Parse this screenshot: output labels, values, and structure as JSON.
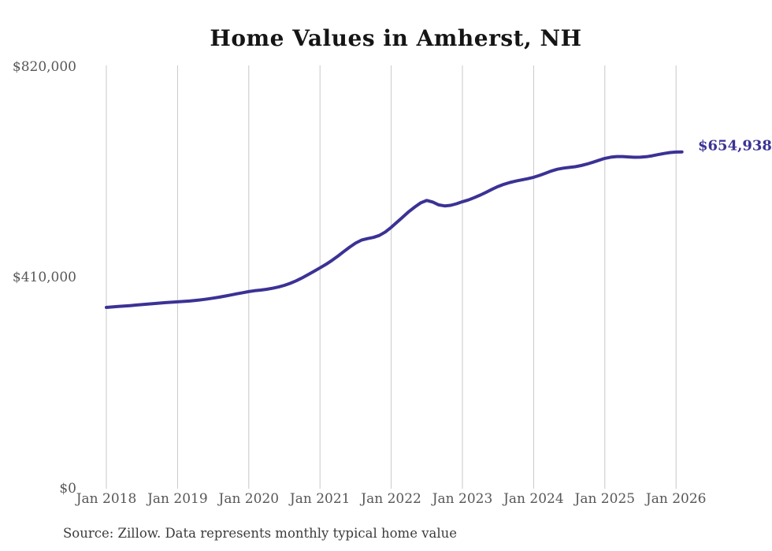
{
  "title": "Home Values in Amherst, NH",
  "source_note": "Source: Zillow. Data represents monthly typical home value",
  "end_label": "$654,938",
  "colors": {
    "background": "#ffffff",
    "line": "#3b3295",
    "grid": "#c8c8c8",
    "axis_text": "#575757",
    "title_text": "#151515",
    "end_label_text": "#3b3295",
    "source_text": "#3c3c3c"
  },
  "chart_data": {
    "type": "line",
    "title": "Home Values in Amherst, NH",
    "xlabel": "",
    "ylabel": "",
    "legend": "none",
    "grid": "vertical-only",
    "ylim": [
      0,
      820000
    ],
    "y_ticks": [
      {
        "label": "$820,000",
        "value": 820000
      },
      {
        "label": "$410,000",
        "value": 410000
      },
      {
        "label": "$0",
        "value": 0
      }
    ],
    "x_tick_labels": [
      "Jan 2018",
      "Jan 2019",
      "Jan 2020",
      "Jan 2021",
      "Jan 2022",
      "Jan 2023",
      "Jan 2024",
      "Jan 2025",
      "Jan 2026"
    ],
    "x_start_month": "2018-01",
    "x_end_month": "2026-02",
    "end_value": 654938,
    "series": [
      {
        "name": "Typical home value (monthly)",
        "monthly_values": [
          352500,
          353400,
          354300,
          355200,
          356100,
          357100,
          358100,
          359100,
          360100,
          361000,
          361900,
          362700,
          363400,
          364100,
          365000,
          366100,
          367400,
          368900,
          370600,
          372500,
          374600,
          376800,
          379000,
          381200,
          383400,
          385000,
          386300,
          387800,
          389700,
          392200,
          395400,
          399400,
          404300,
          410000,
          416300,
          422900,
          429400,
          436200,
          443800,
          452200,
          461000,
          469700,
          477600,
          483400,
          486400,
          488600,
          492400,
          499200,
          508300,
          518300,
          528800,
          539000,
          548000,
          556000,
          560500,
          557500,
          552000,
          550000,
          551000,
          554000,
          558000,
          561500,
          566000,
          571000,
          576500,
          582300,
          587600,
          592000,
          595500,
          598200,
          600500,
          602800,
          605500,
          609300,
          613600,
          617800,
          621200,
          623400,
          624700,
          626100,
          628400,
          631400,
          634900,
          638700,
          642300,
          644700,
          645900,
          645900,
          645100,
          644500,
          644600,
          645600,
          647400,
          649700,
          651900,
          653700,
          654600,
          654938
        ]
      }
    ]
  }
}
